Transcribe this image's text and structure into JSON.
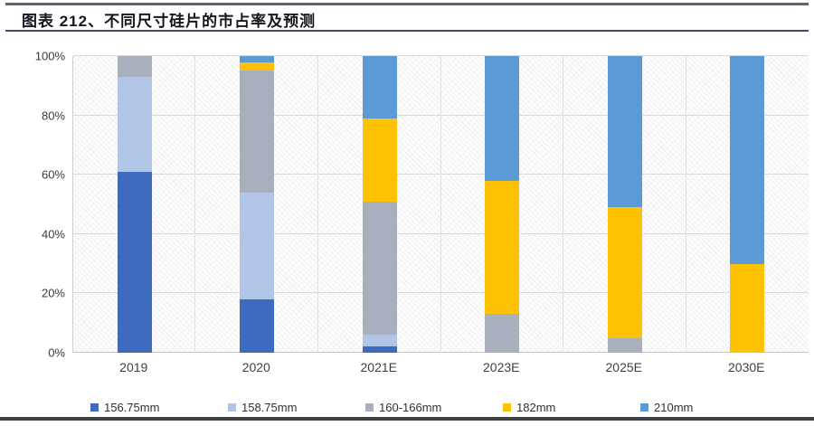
{
  "title": {
    "text": "图表 212、不同尺寸硅片的市占率及预测"
  },
  "colors": {
    "accent_rule_top": "#5a6472",
    "accent_rule_under_title": "#44506b",
    "bottom_bar": "#3b4047",
    "gridline": "#d9d9db",
    "series_156": "#3f6bbe",
    "series_158": "#b1c5e7",
    "series_160_166": "#a9b0bd",
    "series_182": "#fec103",
    "series_210": "#5b9bd5"
  },
  "chart_data": {
    "type": "bar",
    "stacked": true,
    "units": "percent",
    "title": "不同尺寸硅片的市占率及预测",
    "xlabel": "",
    "ylabel": "",
    "ylim": [
      0,
      100
    ],
    "grid": true,
    "legend_position": "bottom",
    "categories": [
      "2019",
      "2020",
      "2021E",
      "2023E",
      "2025E",
      "2030E"
    ],
    "y_ticks_top_down": [
      "100%",
      "80%",
      "60%",
      "40%",
      "20%",
      "0%"
    ],
    "series": [
      {
        "name": "156.75mm",
        "color": "#3f6bbe",
        "values": [
          61,
          18,
          2,
          0,
          0,
          0
        ]
      },
      {
        "name": "158.75mm",
        "color": "#b1c5e7",
        "values": [
          32,
          36,
          4,
          0,
          0,
          0
        ]
      },
      {
        "name": "160-166mm",
        "color": "#a9b0bd",
        "values": [
          7,
          41,
          45,
          13,
          5,
          0
        ]
      },
      {
        "name": "182mm",
        "color": "#fec103",
        "values": [
          0,
          3,
          28,
          45,
          44,
          30
        ]
      },
      {
        "name": "210mm",
        "color": "#5b9bd5",
        "values": [
          0,
          2,
          21,
          42,
          51,
          70
        ]
      }
    ]
  }
}
